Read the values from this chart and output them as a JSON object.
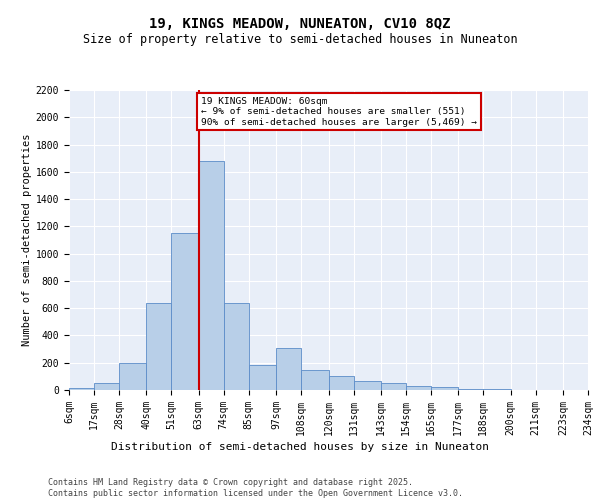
{
  "title": "19, KINGS MEADOW, NUNEATON, CV10 8QZ",
  "subtitle": "Size of property relative to semi-detached houses in Nuneaton",
  "xlabel": "Distribution of semi-detached houses by size in Nuneaton",
  "ylabel": "Number of semi-detached properties",
  "footer_line1": "Contains HM Land Registry data © Crown copyright and database right 2025.",
  "footer_line2": "Contains public sector information licensed under the Open Government Licence v3.0.",
  "bin_labels": [
    "6sqm",
    "17sqm",
    "28sqm",
    "40sqm",
    "51sqm",
    "63sqm",
    "74sqm",
    "85sqm",
    "97sqm",
    "108sqm",
    "120sqm",
    "131sqm",
    "143sqm",
    "154sqm",
    "165sqm",
    "177sqm",
    "188sqm",
    "200sqm",
    "211sqm",
    "223sqm",
    "234sqm"
  ],
  "bin_edges": [
    6,
    17,
    28,
    40,
    51,
    63,
    74,
    85,
    97,
    108,
    120,
    131,
    143,
    154,
    165,
    177,
    188,
    200,
    211,
    223,
    234
  ],
  "bar_heights": [
    15,
    50,
    200,
    640,
    1150,
    1680,
    640,
    185,
    310,
    150,
    100,
    65,
    50,
    30,
    20,
    8,
    5,
    0,
    0,
    0
  ],
  "bar_color": "#b8cfe8",
  "bar_edge_color": "#5b8cc8",
  "vline_x": 63,
  "annotation_title": "19 KINGS MEADOW: 60sqm",
  "annotation_line1": "← 9% of semi-detached houses are smaller (551)",
  "annotation_line2": "90% of semi-detached houses are larger (5,469) →",
  "annotation_box_color": "#cc0000",
  "vline_color": "#cc0000",
  "ylim_max": 2200,
  "yticks": [
    0,
    200,
    400,
    600,
    800,
    1000,
    1200,
    1400,
    1600,
    1800,
    2000,
    2200
  ],
  "plot_bg_color": "#e8eef8",
  "grid_color": "#ffffff",
  "title_fontsize": 10,
  "subtitle_fontsize": 8.5,
  "tick_fontsize": 7,
  "ylabel_fontsize": 7.5,
  "xlabel_fontsize": 8,
  "annotation_fontsize": 6.8,
  "footer_fontsize": 6
}
